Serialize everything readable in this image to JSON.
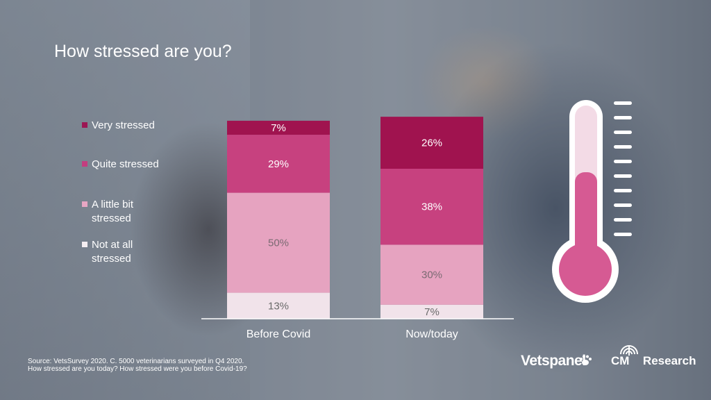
{
  "title": "How stressed are you?",
  "legend": [
    {
      "label": "Very stressed",
      "color": "#9c1653"
    },
    {
      "label": "Quite stressed",
      "color": "#c33e7f"
    },
    {
      "label": "A little bit stressed",
      "color": "#e8a6c3"
    },
    {
      "label": "Not at all stressed",
      "color": "#f5eef2"
    }
  ],
  "chart_data": {
    "type": "bar",
    "stacked": true,
    "categories": [
      "Before Covid",
      "Now/today"
    ],
    "series": [
      {
        "name": "Not at all stressed",
        "values": [
          13,
          7
        ],
        "labels": [
          "13%",
          "7%"
        ],
        "color": "#f1e3ea",
        "text_color": "#6a6a6a"
      },
      {
        "name": "A little bit stressed",
        "values": [
          50,
          30
        ],
        "labels": [
          "50%",
          "30%"
        ],
        "color": "#e6a3c0",
        "text_color": "#7a6a72"
      },
      {
        "name": "Quite stressed",
        "values": [
          29,
          38
        ],
        "labels": [
          "29%",
          "38%"
        ],
        "color": "#c7417f",
        "text_color": "#ffffff"
      },
      {
        "name": "Very stressed",
        "values": [
          7,
          26
        ],
        "labels": [
          "7%",
          "26%"
        ],
        "color": "#a0134f",
        "text_color": "#ffffff"
      }
    ],
    "ylim": [
      0,
      100
    ]
  },
  "source": {
    "line1": "Source: VetsSurvey 2020. C. 5000 veterinarians surveyed in Q4 2020.",
    "line2": "How stressed are you today? How stressed were you before Covid-19?"
  },
  "logos": {
    "vetspanel": "Vetspanel",
    "cm_prefix": "CM",
    "cm_suffix": "Research"
  },
  "thermometer": {
    "fill_color": "#d65a93",
    "tube_color": "#f3dbe6",
    "level_fraction": 0.6
  }
}
